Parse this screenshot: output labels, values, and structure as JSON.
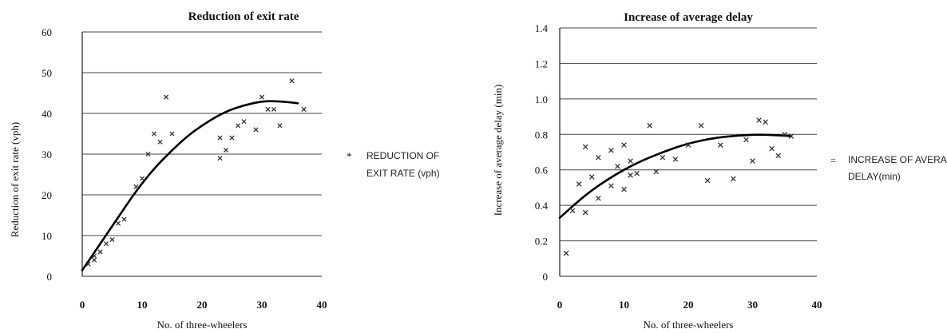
{
  "chart_data": [
    {
      "type": "scatter",
      "title": "Reduction of exit rate",
      "xlabel": "No. of three-wheelers",
      "ylabel": "Reduction of exit rate (vph)",
      "xlim": [
        0,
        40
      ],
      "ylim": [
        0,
        60
      ],
      "x_ticks": [
        "0",
        "10",
        "20",
        "30",
        "40"
      ],
      "y_ticks": [
        "0",
        "10",
        "20",
        "30",
        "40",
        "50",
        "60"
      ],
      "grid": "horizontal",
      "legend_position": "right",
      "marker_color": "#333333",
      "trend_color": "#000000",
      "series": [
        {
          "name": "REDUCTION OF EXIT RATE (vph)",
          "points": [
            [
              1,
              3
            ],
            [
              2,
              4
            ],
            [
              2,
              5
            ],
            [
              3,
              6
            ],
            [
              4,
              8
            ],
            [
              5,
              9
            ],
            [
              6,
              13
            ],
            [
              7,
              14
            ],
            [
              9,
              22
            ],
            [
              10,
              24
            ],
            [
              11,
              30
            ],
            [
              12,
              35
            ],
            [
              13,
              33
            ],
            [
              14,
              44
            ],
            [
              15,
              35
            ],
            [
              23,
              29
            ],
            [
              23,
              34
            ],
            [
              24,
              31
            ],
            [
              25,
              34
            ],
            [
              26,
              37
            ],
            [
              27,
              38
            ],
            [
              29,
              36
            ],
            [
              30,
              44
            ],
            [
              31,
              41
            ],
            [
              32,
              41
            ],
            [
              33,
              37
            ],
            [
              35,
              48
            ],
            [
              37,
              41
            ]
          ]
        }
      ],
      "trendline": [
        [
          0,
          1.5
        ],
        [
          3,
          8
        ],
        [
          6,
          14.5
        ],
        [
          9,
          21
        ],
        [
          12,
          26.5
        ],
        [
          15,
          31
        ],
        [
          18,
          35
        ],
        [
          21,
          38
        ],
        [
          24,
          40.5
        ],
        [
          27,
          42
        ],
        [
          30,
          43
        ],
        [
          33,
          43
        ],
        [
          36,
          42.5
        ]
      ]
    },
    {
      "type": "scatter",
      "title": "Increase of average delay",
      "xlabel": "No. of three-wheelers",
      "ylabel": "Increase of average delay (min)",
      "xlim": [
        0,
        40
      ],
      "ylim": [
        0,
        1.4
      ],
      "x_ticks": [
        "0",
        "10",
        "20",
        "30",
        "40"
      ],
      "y_ticks": [
        "0",
        "0.2",
        "0.4",
        "0.6",
        "0.8",
        "1.0",
        "1.2",
        "1.4"
      ],
      "grid": "horizontal",
      "legend_position": "right",
      "marker_color": "#333333",
      "trend_color": "#000000",
      "series": [
        {
          "name": "INCREASE OF AVERAGE DELAY(min)",
          "points": [
            [
              1,
              0.13
            ],
            [
              2,
              0.37
            ],
            [
              3,
              0.52
            ],
            [
              4,
              0.36
            ],
            [
              4,
              0.73
            ],
            [
              5,
              0.56
            ],
            [
              6,
              0.67
            ],
            [
              6,
              0.44
            ],
            [
              8,
              0.51
            ],
            [
              8,
              0.71
            ],
            [
              9,
              0.62
            ],
            [
              10,
              0.49
            ],
            [
              10,
              0.74
            ],
            [
              11,
              0.57
            ],
            [
              11,
              0.65
            ],
            [
              12,
              0.58
            ],
            [
              14,
              0.85
            ],
            [
              15,
              0.59
            ],
            [
              16,
              0.67
            ],
            [
              18,
              0.66
            ],
            [
              20,
              0.74
            ],
            [
              22,
              0.85
            ],
            [
              23,
              0.54
            ],
            [
              25,
              0.74
            ],
            [
              27,
              0.55
            ],
            [
              29,
              0.77
            ],
            [
              30,
              0.65
            ],
            [
              31,
              0.88
            ],
            [
              32,
              0.87
            ],
            [
              33,
              0.72
            ],
            [
              34,
              0.68
            ],
            [
              35,
              0.8
            ],
            [
              36,
              0.79
            ]
          ]
        }
      ],
      "trendline": [
        [
          0,
          0.33
        ],
        [
          4,
          0.46
        ],
        [
          8,
          0.56
        ],
        [
          12,
          0.64
        ],
        [
          16,
          0.7
        ],
        [
          20,
          0.75
        ],
        [
          24,
          0.78
        ],
        [
          28,
          0.795
        ],
        [
          32,
          0.8
        ],
        [
          36,
          0.79
        ]
      ]
    }
  ]
}
